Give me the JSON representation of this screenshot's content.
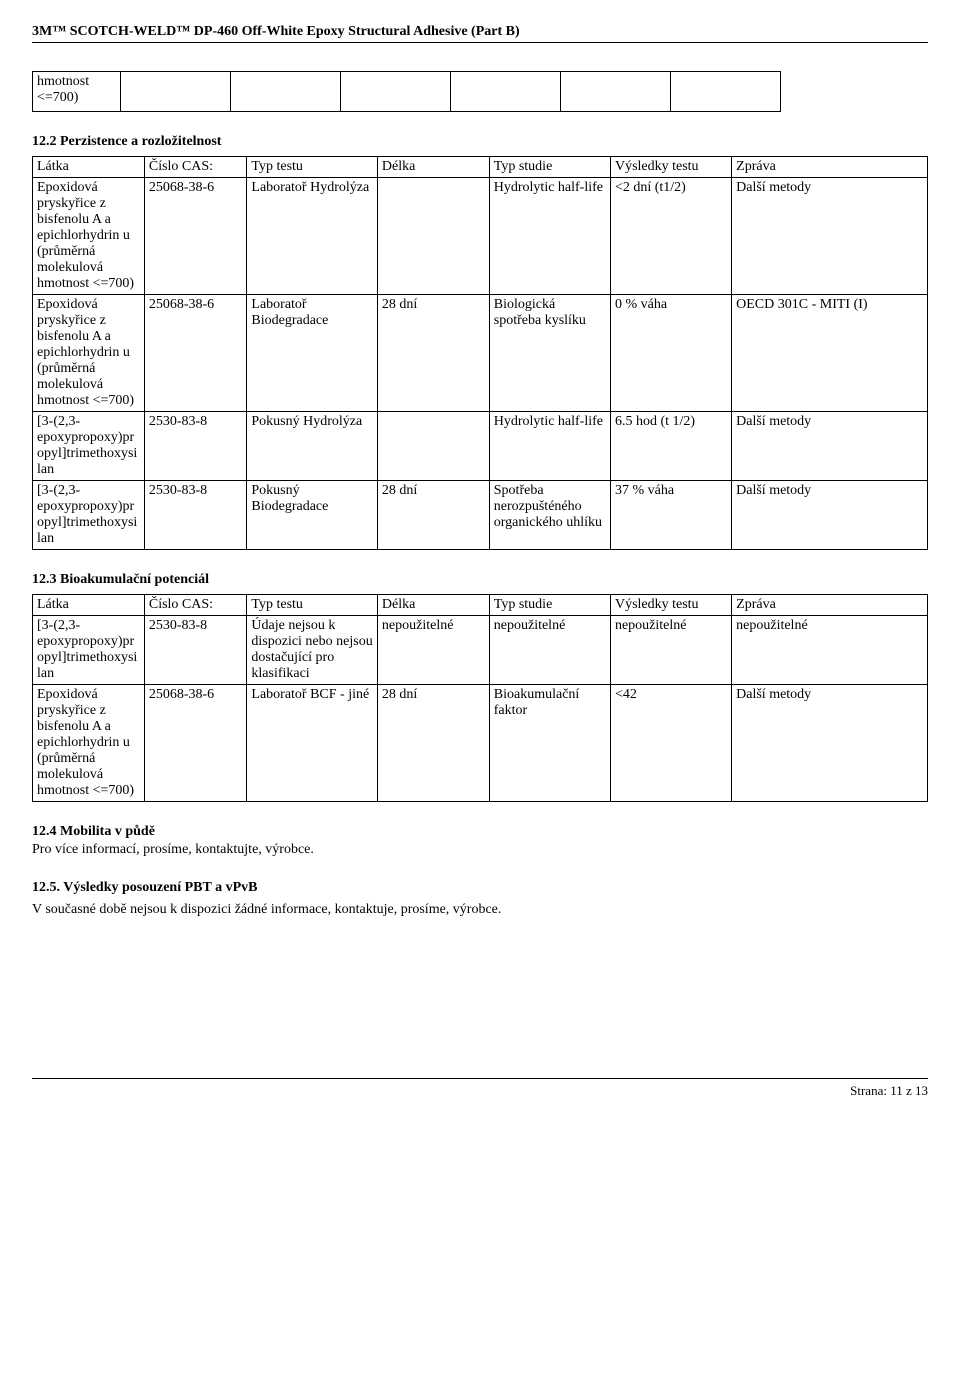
{
  "header": {
    "title": "3M™ SCOTCH-WELD™ DP-460 Off-White Epoxy Structural Adhesive (Part B)"
  },
  "smallTable": {
    "cell0": "hmotnost <=700)"
  },
  "section12_2": {
    "heading": "12.2 Perzistence a rozložitelnost",
    "headers": {
      "latka": "Látka",
      "cas": "Číslo CAS:",
      "typtestu": "Typ testu",
      "delka": "Délka",
      "typstudie": "Typ studie",
      "vysledky": "Výsledky testu",
      "zprava": "Zpráva"
    },
    "rows": [
      {
        "latka": "Epoxidová pryskyřice z bisfenolu A a epichlorhydrin u (průměrná molekulová hmotnost <=700)",
        "cas": "25068-38-6",
        "typtestu": "Laboratoř Hydrolýza",
        "delka": "",
        "typstudie": "Hydrolytic half-life",
        "vysledky": "<2 dní (t1/2)",
        "zprava": "Další metody"
      },
      {
        "latka": "Epoxidová pryskyřice z bisfenolu A a epichlorhydrin u (průměrná molekulová hmotnost <=700)",
        "cas": "25068-38-6",
        "typtestu": "Laboratoř Biodegradace",
        "delka": "28 dní",
        "typstudie": "Biologická spotřeba kyslíku",
        "vysledky": "0 % váha",
        "zprava": "OECD 301C - MITI (I)"
      },
      {
        "latka": "[3-(2,3-epoxypropoxy)propyl]trimethoxysilan",
        "cas": "2530-83-8",
        "typtestu": "Pokusný Hydrolýza",
        "delka": "",
        "typstudie": "Hydrolytic half-life",
        "vysledky": "6.5 hod (t 1/2)",
        "zprava": "Další metody"
      },
      {
        "latka": "[3-(2,3-epoxypropoxy)propyl]trimethoxysilan",
        "cas": "2530-83-8",
        "typtestu": "Pokusný Biodegradace",
        "delka": "28 dní",
        "typstudie": "Spotřeba nerozpušténého organického uhlíku",
        "vysledky": "37 % váha",
        "zprava": "Další metody"
      }
    ]
  },
  "section12_3": {
    "heading": "12.3 Bioakumulační potenciál",
    "headers": {
      "latka": "Látka",
      "cas": "Číslo CAS:",
      "typtestu": "Typ testu",
      "delka": "Délka",
      "typstudie": "Typ studie",
      "vysledky": "Výsledky testu",
      "zprava": "Zpráva"
    },
    "rows": [
      {
        "latka": "[3-(2,3-epoxypropoxy)propyl]trimethoxysilan",
        "cas": "2530-83-8",
        "typtestu": "  Údaje nejsou k dispozici nebo nejsou dostačující pro klasifikaci",
        "delka": "nepoužitelné",
        "typstudie": "nepoužitelné",
        "vysledky": "nepoužitelné",
        "zprava": "nepoužitelné"
      },
      {
        "latka": "Epoxidová pryskyřice z bisfenolu A a epichlorhydrin u (průměrná molekulová hmotnost <=700)",
        "cas": "25068-38-6",
        "typtestu": "Laboratoř BCF - jiné",
        "delka": "28 dní",
        "typstudie": "Bioakumulační faktor",
        "vysledky": "<42",
        "zprava": "Další metody"
      }
    ]
  },
  "section12_4": {
    "heading": "12.4 Mobilita v půdě",
    "text": "Pro více informací, prosíme, kontaktujte, výrobce."
  },
  "section12_5": {
    "heading": "12.5. Výsledky posouzení PBT a vPvB",
    "text": "V současné době nejsou k dispozici žádné informace, kontaktuje, prosíme, výrobce."
  },
  "footer": {
    "pageInfo": "Strana: 11 z  13"
  }
}
